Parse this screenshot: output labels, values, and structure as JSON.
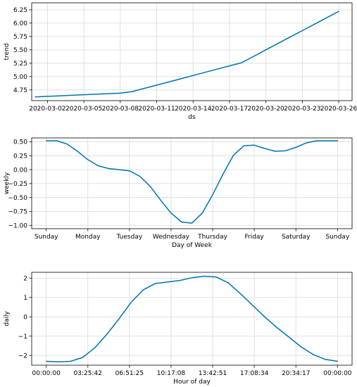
{
  "chart_data": [
    {
      "type": "line",
      "xlabel": "ds",
      "ylabel": "trend",
      "x_tick_labels": [
        "2020-03-02",
        "2020-03-05",
        "2020-03-08",
        "2020-03-11",
        "2020-03-14",
        "2020-03-17",
        "2020-03-20",
        "2020-03-23",
        "2020-03-26"
      ],
      "x_tick_values": [
        2,
        5,
        8,
        11,
        14,
        17,
        20,
        23,
        26
      ],
      "y_tick_labels": [
        "4.75",
        "5.00",
        "5.25",
        "5.50",
        "5.75",
        "6.00",
        "6.25"
      ],
      "y_tick_values": [
        4.75,
        5.0,
        5.25,
        5.5,
        5.75,
        6.0,
        6.25
      ],
      "xlim": [
        0.7,
        27.1
      ],
      "ylim": [
        4.55,
        6.38
      ],
      "grid": true,
      "color": "#0072B2",
      "series": [
        {
          "x": [
            1,
            2,
            3,
            4,
            5,
            6,
            7,
            8,
            9,
            10,
            11,
            12,
            13,
            14,
            15,
            16,
            17,
            18,
            19,
            20,
            21,
            22,
            23,
            24,
            25,
            26
          ],
          "y": [
            4.62,
            4.63,
            4.64,
            4.65,
            4.66,
            4.67,
            4.68,
            4.69,
            4.72,
            4.78,
            4.84,
            4.9,
            4.96,
            5.02,
            5.08,
            5.14,
            5.2,
            5.26,
            5.38,
            5.5,
            5.62,
            5.74,
            5.86,
            5.98,
            6.1,
            6.22
          ]
        }
      ]
    },
    {
      "type": "line",
      "xlabel": "Day of Week",
      "ylabel": "weekly",
      "x_tick_labels": [
        "Sunday",
        "Monday",
        "Tuesday",
        "Wednesday",
        "Thursday",
        "Friday",
        "Saturday",
        "Sunday"
      ],
      "x_tick_values": [
        0,
        1,
        2,
        3,
        4,
        5,
        6,
        7
      ],
      "y_tick_labels": [
        "0.50",
        "0.25",
        "0.00",
        "−0.25",
        "−0.50",
        "−0.75",
        "−1.00"
      ],
      "y_tick_values": [
        0.5,
        0.25,
        0.0,
        -0.25,
        -0.5,
        -0.75,
        -1.0
      ],
      "xlim": [
        -0.35,
        7.35
      ],
      "ylim": [
        -1.06,
        0.57
      ],
      "grid": true,
      "color": "#0072B2",
      "series": [
        {
          "x": [
            0,
            0.25,
            0.5,
            0.75,
            1,
            1.25,
            1.5,
            1.75,
            2,
            2.25,
            2.5,
            2.75,
            3,
            3.25,
            3.5,
            3.75,
            4,
            4.25,
            4.5,
            4.75,
            5,
            5.25,
            5.5,
            5.75,
            6,
            6.25,
            6.5,
            6.75,
            7
          ],
          "y": [
            0.52,
            0.52,
            0.46,
            0.33,
            0.18,
            0.07,
            0.02,
            0.0,
            -0.02,
            -0.12,
            -0.3,
            -0.55,
            -0.78,
            -0.94,
            -0.96,
            -0.78,
            -0.45,
            -0.08,
            0.26,
            0.43,
            0.44,
            0.38,
            0.33,
            0.34,
            0.4,
            0.48,
            0.52,
            0.52,
            0.52
          ]
        }
      ]
    },
    {
      "type": "line",
      "xlabel": "Hour of day",
      "ylabel": "daily",
      "x_tick_labels": [
        "00:00:00",
        "03:25:42",
        "06:51:25",
        "10:17:08",
        "13:42:51",
        "17:08:34",
        "20:34:17",
        "00:00:00"
      ],
      "x_tick_values": [
        0,
        3.428,
        6.857,
        10.286,
        13.714,
        17.143,
        20.571,
        24
      ],
      "y_tick_labels": [
        "2",
        "1",
        "0",
        "−1",
        "−2"
      ],
      "y_tick_values": [
        2,
        1,
        0,
        -1,
        -2
      ],
      "xlim": [
        -1.2,
        25.2
      ],
      "ylim": [
        -2.5,
        2.3
      ],
      "grid": true,
      "color": "#0072B2",
      "series": [
        {
          "x": [
            0,
            1,
            2,
            3,
            4,
            5,
            6,
            7,
            8,
            9,
            10,
            11,
            12,
            13,
            14,
            15,
            16,
            17,
            18,
            19,
            20,
            21,
            22,
            23,
            24
          ],
          "y": [
            -2.3,
            -2.33,
            -2.3,
            -2.1,
            -1.6,
            -0.9,
            -0.1,
            0.75,
            1.4,
            1.72,
            1.8,
            1.88,
            2.02,
            2.1,
            2.06,
            1.75,
            1.2,
            0.6,
            0.0,
            -0.55,
            -1.05,
            -1.55,
            -1.95,
            -2.2,
            -2.3
          ]
        }
      ]
    }
  ]
}
